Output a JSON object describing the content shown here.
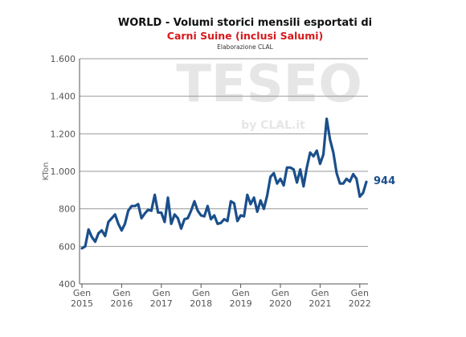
{
  "title": "WORLD - Volumi storici mensili esportati di",
  "subtitle": "Carni Suine (inclusi Salumi)",
  "source": "Elaborazione CLAL",
  "watermark": {
    "main": "TESEO",
    "sub": "by CLAL.it"
  },
  "colors": {
    "line": "#1a4f8b",
    "subtitle": "#d7191c",
    "grid": "#9a9a9a",
    "watermark": "#e6e6e6"
  },
  "chart_data": {
    "type": "line",
    "xlabel": "",
    "ylabel": "KTon",
    "ylim": [
      400,
      1600
    ],
    "yticks": [
      "400",
      "600",
      "800",
      "1.000",
      "1.200",
      "1.400",
      "1.600"
    ],
    "ytick_values": [
      400,
      600,
      800,
      1000,
      1200,
      1400,
      1600
    ],
    "xticks": [
      {
        "label": [
          "Gen",
          "2015"
        ],
        "value": "2015-01"
      },
      {
        "label": [
          "Gen",
          "2016"
        ],
        "value": "2016-01"
      },
      {
        "label": [
          "Gen",
          "2017"
        ],
        "value": "2017-01"
      },
      {
        "label": [
          "Gen",
          "2018"
        ],
        "value": "2018-01"
      },
      {
        "label": [
          "Gen",
          "2019"
        ],
        "value": "2019-01"
      },
      {
        "label": [
          "Gen",
          "2020"
        ],
        "value": "2020-01"
      },
      {
        "label": [
          "Gen",
          "2021"
        ],
        "value": "2021-01"
      },
      {
        "label": [
          "Gen",
          "2022"
        ],
        "value": "2022-01"
      }
    ],
    "grid": true,
    "last_value_label": "944",
    "series": [
      {
        "x_start": "2015-01",
        "x_end": "2022-03",
        "values": [
          590,
          600,
          690,
          650,
          625,
          670,
          685,
          655,
          730,
          750,
          770,
          720,
          685,
          720,
          790,
          815,
          815,
          825,
          750,
          775,
          795,
          790,
          875,
          780,
          780,
          730,
          860,
          720,
          770,
          750,
          695,
          745,
          750,
          790,
          840,
          790,
          765,
          760,
          815,
          745,
          765,
          720,
          725,
          745,
          735,
          840,
          830,
          735,
          765,
          760,
          875,
          825,
          860,
          785,
          845,
          800,
          870,
          970,
          990,
          935,
          960,
          925,
          1020,
          1020,
          1010,
          940,
          1010,
          920,
          1020,
          1100,
          1080,
          1110,
          1040,
          1090,
          1280,
          1170,
          1100,
          990,
          935,
          935,
          960,
          945,
          985,
          960,
          865,
          885,
          944
        ]
      }
    ]
  }
}
